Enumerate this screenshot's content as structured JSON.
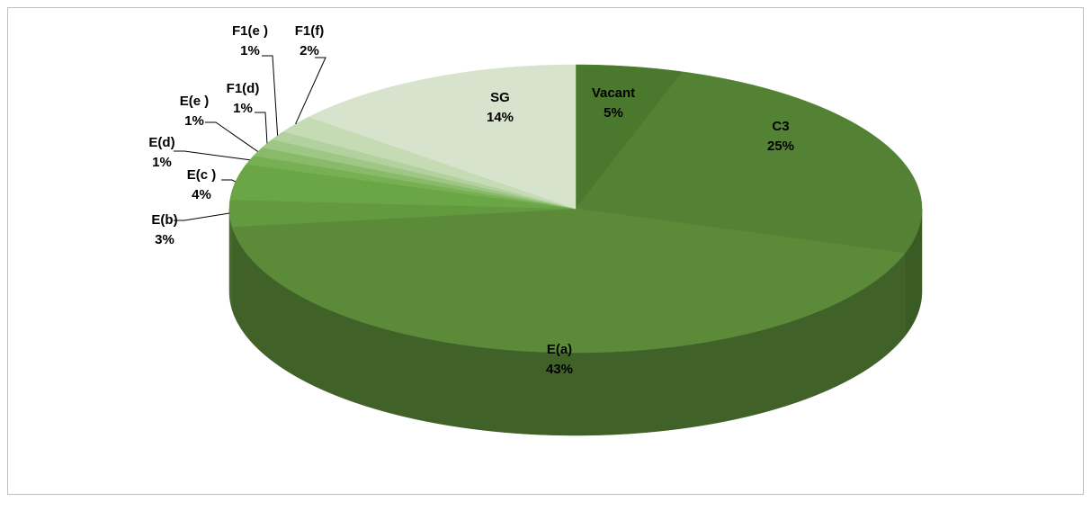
{
  "chart_data": {
    "type": "pie3d",
    "categories": [
      "Vacant",
      "C3",
      "E(a)",
      "E(b)",
      "E(c )",
      "E(d)",
      "E(e )",
      "F1(d)",
      "F1(e )",
      "F1(f)",
      "SG"
    ],
    "values": [
      5,
      25,
      43,
      3,
      4,
      1,
      1,
      1,
      1,
      2,
      14
    ],
    "value_labels": [
      "5%",
      "25%",
      "43%",
      "3%",
      "4%",
      "1%",
      "1%",
      "1%",
      "1%",
      "2%",
      "14%"
    ],
    "colors": [
      "#4a792d",
      "#548235",
      "#5b8b39",
      "#63993f",
      "#6aa645",
      "#76b053",
      "#88ba69",
      "#9ec685",
      "#b2d19e",
      "#c4dbb4",
      "#d7e3cc"
    ]
  }
}
